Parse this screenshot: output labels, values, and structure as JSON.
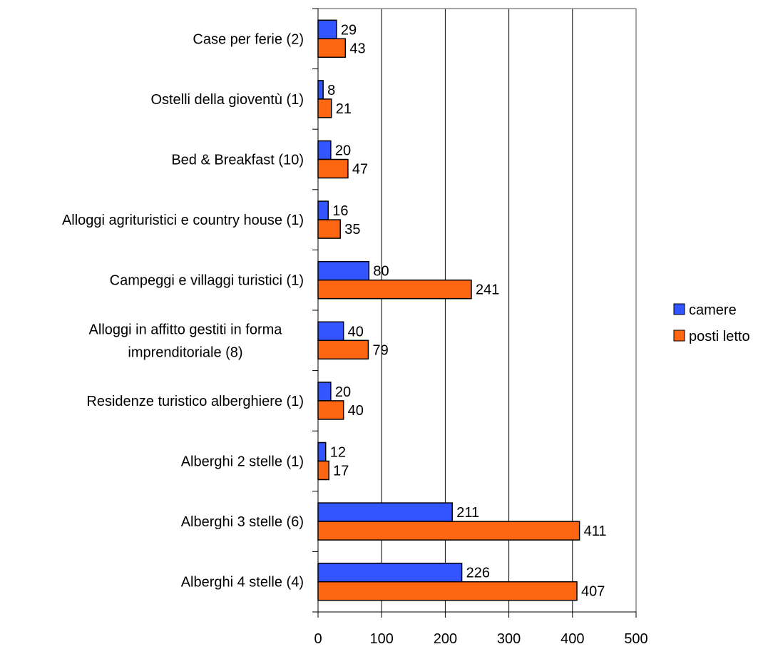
{
  "chart_data": {
    "type": "bar",
    "orientation": "horizontal",
    "title": "",
    "xlabel": "",
    "ylabel": "",
    "xlim": [
      0,
      500
    ],
    "xticks": [
      0,
      100,
      200,
      300,
      400,
      500
    ],
    "grid": "vertical",
    "legend_position": "right",
    "categories": [
      [
        "Case per ferie (2)"
      ],
      [
        "Ostelli della gioventù (1)"
      ],
      [
        "Bed & Breakfast (10)"
      ],
      [
        "Alloggi agrituristici e country house (1)"
      ],
      [
        "Campeggi e villaggi turistici (1)"
      ],
      [
        "Alloggi in affitto gestiti in forma",
        "imprenditoriale (8)"
      ],
      [
        "Residenze turistico alberghiere (1)"
      ],
      [
        "Alberghi 2 stelle (1)"
      ],
      [
        "Alberghi 3 stelle (6)"
      ],
      [
        "Alberghi 4 stelle (4)"
      ]
    ],
    "series": [
      {
        "name": "camere",
        "color": "#3355ff",
        "values": [
          29,
          8,
          20,
          16,
          80,
          40,
          20,
          12,
          211,
          226
        ]
      },
      {
        "name": "posti letto",
        "color": "#ff6611",
        "values": [
          43,
          21,
          47,
          35,
          241,
          79,
          40,
          17,
          411,
          407
        ]
      }
    ]
  }
}
